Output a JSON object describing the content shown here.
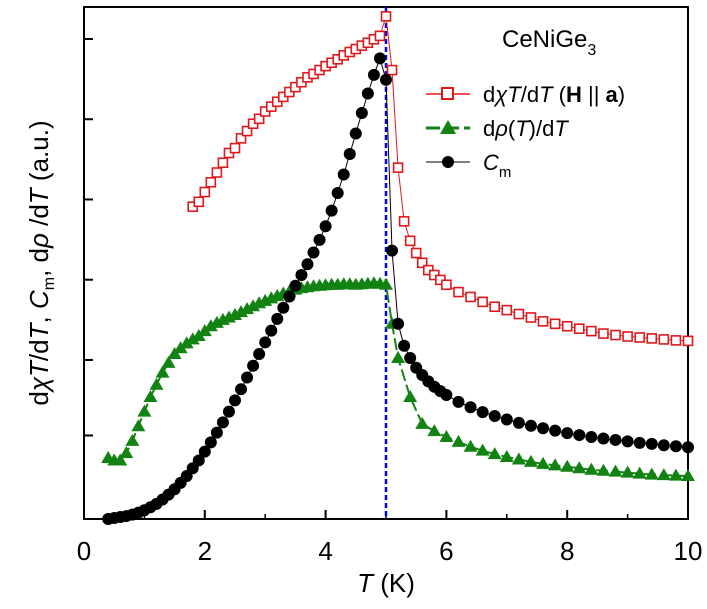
{
  "chart_data": {
    "type": "scatter",
    "title": "CeNiGe3",
    "title_parts": {
      "base": "CeNiGe",
      "sub": "3"
    },
    "xlabel": "T (K)",
    "xlabel_parts": {
      "italic": "T",
      "rest": " (K)"
    },
    "ylabel": "dχT/dT, Cm, dρ/dT (a.u.)",
    "ylabel_parts": {
      "d1": "d",
      "chi": "χ",
      "T1": "T",
      "slash1": "/d",
      "T2": "T",
      "comma1": ", ",
      "C": "C",
      "m": "m",
      "comma2": ", d",
      "rho": "ρ",
      "slash2": " /d",
      "T3": "T",
      "unit": " (a.u.)"
    },
    "xlim": [
      0,
      10
    ],
    "ylim": [
      0,
      1
    ],
    "y_scale": "arbitrary units, no tick labels",
    "x_ticks": [
      0,
      2,
      4,
      6,
      8,
      10
    ],
    "x_tick_labels": [
      "0",
      "2",
      "4",
      "6",
      "8",
      "10"
    ],
    "y_tick_positions": [
      0.16,
      0.32,
      0.49,
      0.66,
      0.83,
      1.0
    ],
    "grid": false,
    "legend_placement": "top-right",
    "vertical_line": {
      "x": 5.0,
      "style": "dashed",
      "color": "#0000ee"
    },
    "series": [
      {
        "name": "dχT/dT (H || a)",
        "legend_parts": {
          "d1": "d",
          "chi": "χ",
          "T1": "T",
          "slash": "/d",
          "T2": "T",
          "paren_open": " (",
          "H": "H",
          "par": " || ",
          "a": "a",
          "paren_close": ")"
        },
        "color": "#e0181c",
        "marker": "open-square",
        "x": [
          1.8,
          1.9,
          2.0,
          2.1,
          2.2,
          2.3,
          2.4,
          2.5,
          2.6,
          2.7,
          2.8,
          2.9,
          3.0,
          3.1,
          3.2,
          3.3,
          3.4,
          3.5,
          3.6,
          3.7,
          3.8,
          3.9,
          4.0,
          4.1,
          4.2,
          4.3,
          4.4,
          4.5,
          4.6,
          4.7,
          4.8,
          4.9,
          5.0,
          5.1,
          5.2,
          5.3,
          5.4,
          5.5,
          5.6,
          5.7,
          5.8,
          5.9,
          6.0,
          6.2,
          6.4,
          6.6,
          6.8,
          7.0,
          7.2,
          7.4,
          7.6,
          7.8,
          8.0,
          8.2,
          8.4,
          8.6,
          8.8,
          9.0,
          9.2,
          9.4,
          9.6,
          9.8,
          10.0
        ],
        "y": [
          0.64,
          0.65,
          0.67,
          0.69,
          0.71,
          0.73,
          0.75,
          0.76,
          0.78,
          0.795,
          0.81,
          0.82,
          0.835,
          0.845,
          0.855,
          0.865,
          0.875,
          0.885,
          0.895,
          0.905,
          0.912,
          0.92,
          0.928,
          0.935,
          0.942,
          0.95,
          0.957,
          0.963,
          0.97,
          0.976,
          0.983,
          0.99,
          1.03,
          0.92,
          0.72,
          0.61,
          0.57,
          0.545,
          0.525,
          0.51,
          0.5,
          0.49,
          0.48,
          0.465,
          0.455,
          0.445,
          0.435,
          0.428,
          0.42,
          0.413,
          0.405,
          0.4,
          0.395,
          0.39,
          0.385,
          0.38,
          0.377,
          0.374,
          0.372,
          0.37,
          0.368,
          0.366,
          0.365
        ]
      },
      {
        "name": "dρ(T)/dT",
        "legend_parts": {
          "d1": "d",
          "rho": "ρ",
          "open": "(",
          "T1": "T",
          "close": ")/d",
          "T2": "T"
        },
        "color": "#128212",
        "marker": "filled-triangle",
        "x": [
          0.4,
          0.5,
          0.6,
          0.7,
          0.8,
          0.9,
          1.0,
          1.1,
          1.2,
          1.3,
          1.4,
          1.5,
          1.6,
          1.7,
          1.8,
          1.9,
          2.0,
          2.1,
          2.2,
          2.3,
          2.4,
          2.5,
          2.6,
          2.7,
          2.8,
          2.9,
          3.0,
          3.1,
          3.2,
          3.3,
          3.4,
          3.5,
          3.6,
          3.7,
          3.8,
          3.9,
          4.0,
          4.1,
          4.2,
          4.3,
          4.4,
          4.5,
          4.6,
          4.7,
          4.8,
          4.9,
          5.0,
          5.1,
          5.2,
          5.4,
          5.6,
          5.8,
          6.0,
          6.2,
          6.4,
          6.6,
          6.8,
          7.0,
          7.2,
          7.4,
          7.6,
          7.8,
          8.0,
          8.2,
          8.4,
          8.6,
          8.8,
          9.0,
          9.2,
          9.4,
          9.6,
          9.8,
          10.0
        ],
        "y": [
          0.125,
          0.12,
          0.12,
          0.135,
          0.16,
          0.19,
          0.22,
          0.25,
          0.275,
          0.3,
          0.32,
          0.338,
          0.35,
          0.36,
          0.368,
          0.375,
          0.385,
          0.395,
          0.402,
          0.408,
          0.413,
          0.418,
          0.424,
          0.43,
          0.436,
          0.442,
          0.447,
          0.452,
          0.457,
          0.462,
          0.466,
          0.47,
          0.473,
          0.475,
          0.477,
          0.478,
          0.479,
          0.48,
          0.48,
          0.481,
          0.481,
          0.48,
          0.481,
          0.482,
          0.483,
          0.482,
          0.48,
          0.4,
          0.33,
          0.25,
          0.195,
          0.18,
          0.168,
          0.158,
          0.148,
          0.14,
          0.133,
          0.127,
          0.122,
          0.117,
          0.113,
          0.11,
          0.107,
          0.104,
          0.101,
          0.099,
          0.097,
          0.095,
          0.093,
          0.091,
          0.09,
          0.089,
          0.088
        ]
      },
      {
        "name": "Cm",
        "legend_parts": {
          "C": "C",
          "m": "m"
        },
        "color": "#000000",
        "marker": "filled-circle",
        "x": [
          0.4,
          0.5,
          0.6,
          0.7,
          0.8,
          0.9,
          1.0,
          1.1,
          1.2,
          1.3,
          1.4,
          1.5,
          1.6,
          1.7,
          1.8,
          1.9,
          2.0,
          2.1,
          2.2,
          2.3,
          2.4,
          2.5,
          2.6,
          2.7,
          2.8,
          2.9,
          3.0,
          3.1,
          3.2,
          3.3,
          3.4,
          3.5,
          3.6,
          3.7,
          3.8,
          3.9,
          4.0,
          4.1,
          4.2,
          4.3,
          4.4,
          4.5,
          4.6,
          4.7,
          4.8,
          4.9,
          5.0,
          5.1,
          5.2,
          5.3,
          5.4,
          5.5,
          5.6,
          5.7,
          5.8,
          5.9,
          6.0,
          6.2,
          6.4,
          6.6,
          6.8,
          7.0,
          7.2,
          7.4,
          7.6,
          7.8,
          8.0,
          8.2,
          8.4,
          8.6,
          8.8,
          9.0,
          9.2,
          9.4,
          9.6,
          9.8,
          10.0
        ],
        "y": [
          0.0,
          0.002,
          0.004,
          0.006,
          0.009,
          0.013,
          0.018,
          0.024,
          0.031,
          0.04,
          0.05,
          0.061,
          0.074,
          0.088,
          0.104,
          0.12,
          0.138,
          0.157,
          0.177,
          0.198,
          0.22,
          0.243,
          0.266,
          0.29,
          0.314,
          0.338,
          0.362,
          0.386,
          0.41,
          0.433,
          0.456,
          0.478,
          0.5,
          0.522,
          0.546,
          0.572,
          0.6,
          0.632,
          0.668,
          0.706,
          0.748,
          0.79,
          0.832,
          0.872,
          0.91,
          0.944,
          0.9,
          0.55,
          0.4,
          0.355,
          0.33,
          0.31,
          0.295,
          0.282,
          0.271,
          0.262,
          0.254,
          0.24,
          0.229,
          0.219,
          0.211,
          0.204,
          0.197,
          0.191,
          0.186,
          0.181,
          0.176,
          0.172,
          0.168,
          0.165,
          0.162,
          0.159,
          0.156,
          0.154,
          0.151,
          0.149,
          0.147
        ]
      }
    ]
  }
}
